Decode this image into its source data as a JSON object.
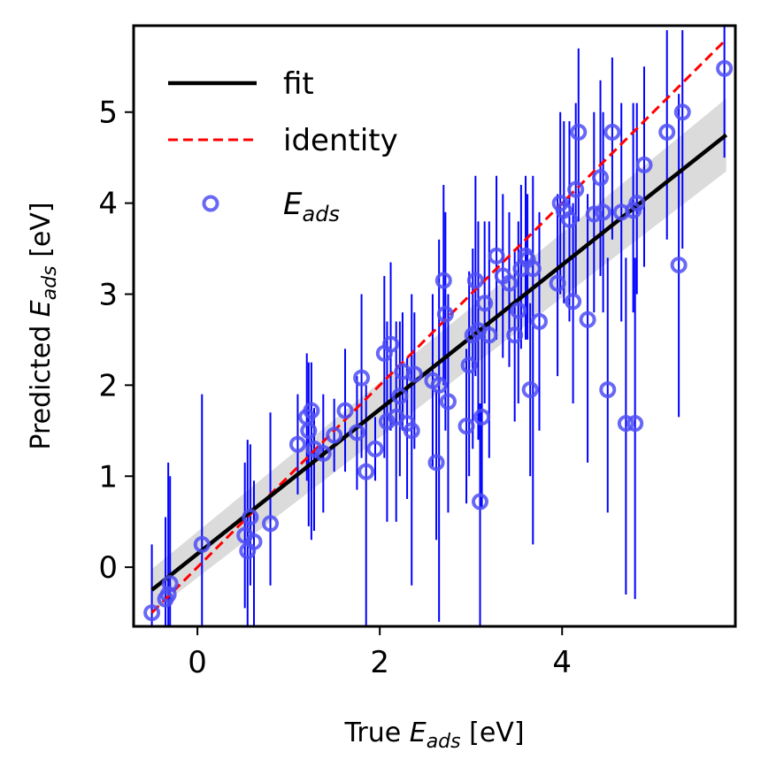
{
  "chart_data": {
    "type": "scatter",
    "xlabel": {
      "prefix": "True ",
      "symbol": "E",
      "subscript": "ads",
      "suffix": " [eV]"
    },
    "ylabel": {
      "prefix": "Predicted ",
      "symbol": "E",
      "subscript": "ads",
      "suffix": " [eV]"
    },
    "xlim": [
      -0.7,
      5.9
    ],
    "ylim": [
      -0.65,
      5.95
    ],
    "xticks": [
      0,
      2,
      4
    ],
    "yticks": [
      0,
      1,
      2,
      3,
      4,
      5
    ],
    "grid": false,
    "legend_position": "top-left",
    "legend": [
      {
        "label": "fit",
        "style": "solid",
        "color": "#000000"
      },
      {
        "label": "identity",
        "style": "dashed",
        "color": "#ff0000"
      },
      {
        "symbol": "E",
        "subscript": "ads",
        "style": "marker",
        "color": "#4d4df5"
      }
    ],
    "fit_line": {
      "x": [
        -0.5,
        5.8
      ],
      "y": [
        -0.25,
        4.75
      ],
      "band": [
        [
          -0.5,
          -0.5,
          -0.02
        ],
        [
          5.8,
          4.35,
          5.15
        ]
      ]
    },
    "identity_line": {
      "x": [
        -0.5,
        5.8
      ],
      "y": [
        -0.5,
        5.8
      ]
    },
    "error_bar_color": "#0000ff",
    "marker_color": "#4d4df5",
    "points": [
      [
        -0.5,
        -0.5,
        -0.65,
        0.25
      ],
      [
        -0.35,
        -0.35,
        -0.65,
        0.55
      ],
      [
        -0.3,
        -0.18,
        -0.65,
        1.0
      ],
      [
        -0.32,
        -0.3,
        -0.65,
        1.15
      ],
      [
        0.05,
        0.25,
        -0.65,
        1.9
      ],
      [
        0.52,
        0.35,
        -0.45,
        1.15
      ],
      [
        0.55,
        0.18,
        -0.65,
        1.4
      ],
      [
        0.58,
        0.55,
        -0.2,
        1.35
      ],
      [
        0.62,
        0.28,
        -0.65,
        0.95
      ],
      [
        0.8,
        0.48,
        -0.2,
        1.7
      ],
      [
        1.1,
        1.35,
        0.8,
        1.9
      ],
      [
        1.2,
        1.65,
        0.95,
        2.35
      ],
      [
        1.22,
        1.5,
        0.45,
        2.25
      ],
      [
        1.25,
        1.72,
        0.3,
        2.25
      ],
      [
        1.28,
        1.3,
        0.4,
        1.75
      ],
      [
        1.38,
        1.25,
        0.6,
        1.9
      ],
      [
        1.5,
        1.45,
        1.05,
        1.85
      ],
      [
        1.62,
        1.72,
        1.05,
        2.4
      ],
      [
        1.75,
        1.48,
        0.85,
        2.1
      ],
      [
        1.8,
        2.08,
        1.2,
        3.0
      ],
      [
        1.85,
        1.05,
        -0.65,
        2.0
      ],
      [
        1.95,
        1.3,
        0.95,
        1.65
      ],
      [
        2.05,
        2.35,
        1.2,
        3.2
      ],
      [
        2.08,
        1.6,
        0.5,
        2.7
      ],
      [
        2.12,
        2.45,
        1.5,
        3.35
      ],
      [
        2.18,
        1.65,
        0.5,
        2.7
      ],
      [
        2.22,
        1.88,
        1.0,
        2.7
      ],
      [
        2.25,
        2.15,
        1.5,
        2.8
      ],
      [
        2.3,
        1.58,
        0.75,
        2.3
      ],
      [
        2.35,
        1.5,
        -0.2,
        3.0
      ],
      [
        2.38,
        2.12,
        1.3,
        2.8
      ],
      [
        2.58,
        2.05,
        1.1,
        3.0
      ],
      [
        2.62,
        1.15,
        0.3,
        1.95
      ],
      [
        2.65,
        2.0,
        -0.6,
        3.6
      ],
      [
        2.7,
        3.15,
        2.0,
        4.2
      ],
      [
        2.72,
        2.78,
        1.5,
        3.9
      ],
      [
        2.75,
        1.82,
        0.6,
        3.0
      ],
      [
        2.95,
        1.55,
        0.7,
        2.4
      ],
      [
        2.98,
        2.22,
        1.0,
        3.25
      ],
      [
        3.02,
        2.55,
        1.3,
        3.5
      ],
      [
        3.05,
        3.15,
        2.1,
        4.3
      ],
      [
        3.08,
        2.6,
        1.4,
        3.8
      ],
      [
        3.1,
        0.72,
        -0.65,
        1.8
      ],
      [
        3.12,
        1.65,
        0.65,
        2.6
      ],
      [
        3.15,
        2.9,
        1.8,
        3.8
      ],
      [
        3.2,
        2.55,
        1.2,
        3.8
      ],
      [
        3.28,
        3.42,
        2.5,
        4.3
      ],
      [
        3.35,
        3.2,
        2.3,
        4.1
      ],
      [
        3.42,
        3.12,
        2.2,
        3.9
      ],
      [
        3.48,
        2.55,
        1.6,
        3.5
      ],
      [
        3.52,
        2.82,
        1.8,
        3.8
      ],
      [
        3.55,
        3.28,
        2.4,
        4.2
      ],
      [
        3.6,
        3.42,
        2.5,
        4.3
      ],
      [
        3.62,
        3.38,
        2.5,
        4.1
      ],
      [
        3.65,
        1.95,
        1.0,
        2.9
      ],
      [
        3.68,
        3.28,
        0.25,
        4.3
      ],
      [
        3.75,
        2.7,
        1.5,
        3.9
      ],
      [
        3.95,
        3.12,
        2.1,
        4.1
      ],
      [
        3.98,
        4.0,
        3.0,
        5.0
      ],
      [
        4.02,
        3.92,
        2.9,
        4.9
      ],
      [
        4.08,
        3.82,
        2.7,
        4.9
      ],
      [
        4.12,
        2.92,
        1.8,
        4.0
      ],
      [
        4.15,
        4.15,
        3.0,
        5.1
      ],
      [
        4.18,
        4.78,
        3.8,
        5.7
      ],
      [
        4.28,
        2.72,
        1.15,
        4.1
      ],
      [
        4.35,
        3.88,
        2.8,
        5.0
      ],
      [
        4.42,
        4.28,
        3.2,
        5.35
      ],
      [
        4.45,
        3.9,
        2.8,
        5.0
      ],
      [
        4.5,
        1.95,
        0.6,
        3.4
      ],
      [
        4.55,
        4.78,
        3.6,
        5.6
      ],
      [
        4.65,
        3.9,
        2.7,
        5.1
      ],
      [
        4.7,
        1.58,
        -0.3,
        3.4
      ],
      [
        4.78,
        3.92,
        2.8,
        5.1
      ],
      [
        4.8,
        1.58,
        -0.35,
        3.4
      ],
      [
        4.82,
        4.0,
        3.0,
        5.1
      ],
      [
        4.9,
        4.42,
        3.3,
        5.5
      ],
      [
        5.15,
        4.78,
        3.6,
        5.9
      ],
      [
        5.28,
        3.32,
        1.65,
        5.2
      ],
      [
        5.32,
        5.0,
        3.5,
        5.9
      ],
      [
        5.78,
        5.48,
        4.5,
        5.95
      ]
    ]
  }
}
